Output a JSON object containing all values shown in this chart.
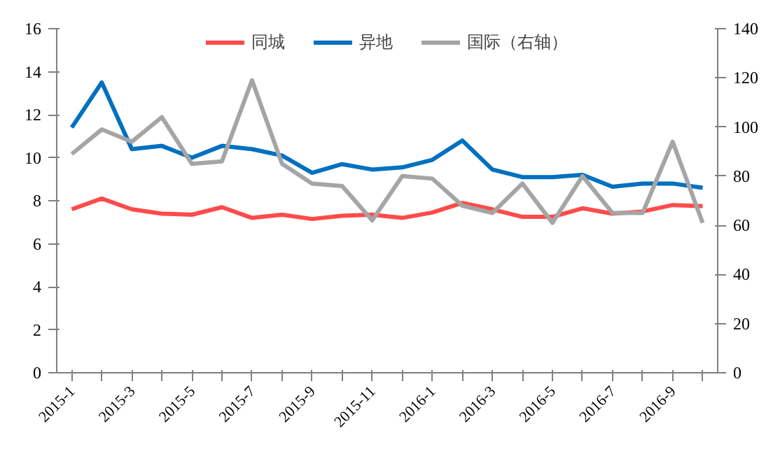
{
  "chart_data": {
    "type": "line",
    "categories": [
      "2015-1",
      null,
      "2015-3",
      null,
      "2015-5",
      null,
      "2015-7",
      null,
      "2015-9",
      null,
      "2015-11",
      null,
      "2016-1",
      null,
      "2016-3",
      null,
      "2016-5",
      null,
      "2016-7",
      null,
      "2016-9",
      null
    ],
    "series": [
      {
        "name": "同城",
        "color": "#ff4b4b",
        "values": [
          7.6,
          8.1,
          7.6,
          7.4,
          7.35,
          7.7,
          7.2,
          7.35,
          7.15,
          7.3,
          7.35,
          7.2,
          7.45,
          7.9,
          7.6,
          7.25,
          7.25,
          7.65,
          7.4,
          7.5,
          7.8,
          7.75
        ]
      },
      {
        "name": "异地",
        "color": "#0070c0",
        "values": [
          11.4,
          13.5,
          10.4,
          10.55,
          10.0,
          10.55,
          10.4,
          10.1,
          9.3,
          9.7,
          9.45,
          9.55,
          9.9,
          10.8,
          9.45,
          9.1,
          9.1,
          9.2,
          8.65,
          8.8,
          8.8,
          8.6
        ]
      },
      {
        "name": "国际（右轴）",
        "color": "#a5a5a5",
        "axis": "y2",
        "values": [
          89,
          99,
          94,
          104,
          85,
          86,
          119,
          85,
          77,
          76,
          62,
          80,
          79,
          68,
          65,
          77,
          61,
          80,
          65,
          65,
          94,
          61
        ]
      }
    ],
    "ylim": [
      0,
      16
    ],
    "yticks": [
      0,
      2,
      4,
      6,
      8,
      10,
      12,
      14,
      16
    ],
    "y2lim": [
      0,
      140
    ],
    "y2ticks": [
      0,
      20,
      40,
      60,
      80,
      100,
      120,
      140
    ],
    "legend": "top",
    "grid": false,
    "marker": "none",
    "line_style": "solid"
  }
}
